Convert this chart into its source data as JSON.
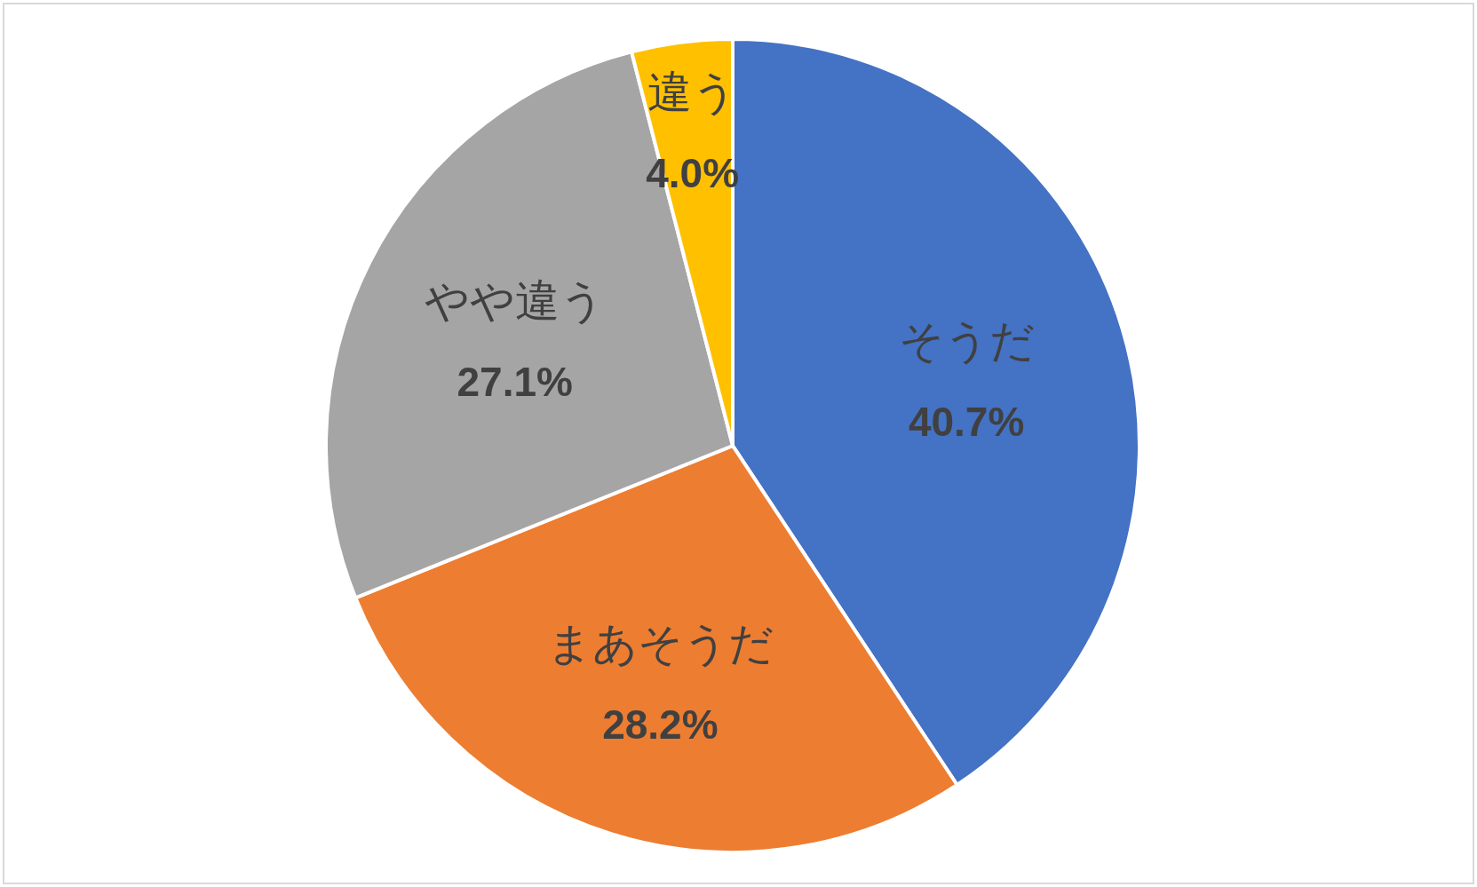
{
  "chart_data": {
    "type": "pie",
    "categories": [
      "そうだ",
      "まあそうだ",
      "やや違う",
      "違う"
    ],
    "values": [
      40.7,
      28.2,
      27.1,
      4.0
    ],
    "colors": [
      "#4472c4",
      "#ed7d31",
      "#a5a5a5",
      "#ffc000"
    ],
    "value_labels": [
      "40.7%",
      "28.2%",
      "27.1%",
      "4.0%"
    ]
  }
}
